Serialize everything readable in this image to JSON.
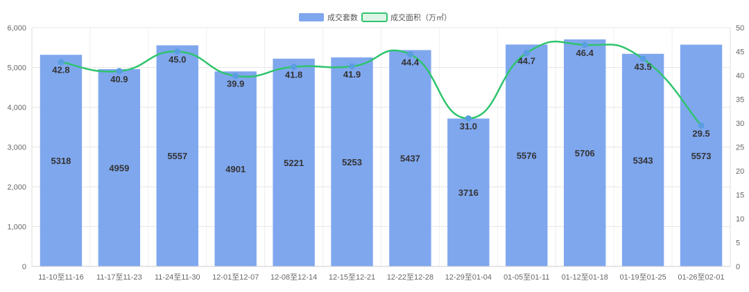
{
  "chart_data": {
    "type": "bar",
    "categories": [
      "11-10至11-16",
      "11-17至11-23",
      "11-24至11-30",
      "12-01至12-07",
      "12-08至12-14",
      "12-15至12-21",
      "12-22至12-28",
      "12-29至01-04",
      "01-05至01-11",
      "01-12至01-18",
      "01-19至01-25",
      "01-26至02-01"
    ],
    "series": [
      {
        "name": "成交套数",
        "type": "bar",
        "axis": "left",
        "color": "#7fa7ee",
        "values": [
          5318,
          4959,
          5557,
          4901,
          5221,
          5253,
          5437,
          3716,
          5576,
          5706,
          5343,
          5573
        ],
        "labels": [
          "5318",
          "4959",
          "5557",
          "4901",
          "5221",
          "5253",
          "5437",
          "3716",
          "5576",
          "5706",
          "5343",
          "5573"
        ]
      },
      {
        "name": "成交面积（万㎡）",
        "type": "line",
        "axis": "right",
        "color": "#2ec46d",
        "marker_color": "#5a9ee0",
        "values": [
          42.8,
          40.9,
          45.0,
          39.9,
          41.8,
          41.9,
          44.4,
          31.0,
          44.7,
          46.4,
          43.5,
          29.5
        ],
        "labels": [
          "42.8",
          "40.9",
          "45.0",
          "39.9",
          "41.8",
          "41.9",
          "44.4",
          "31.0",
          "44.7",
          "46.4",
          "43.5",
          "29.5"
        ]
      }
    ],
    "left_axis": {
      "ylim": [
        0,
        6000
      ],
      "ticks": [
        0,
        1000,
        2000,
        3000,
        4000,
        5000,
        6000
      ],
      "tick_labels": [
        "0",
        "1,000",
        "2,000",
        "3,000",
        "4,000",
        "5,000",
        "6,000"
      ]
    },
    "right_axis": {
      "ylim": [
        0,
        50
      ],
      "ticks": [
        0,
        5,
        10,
        15,
        20,
        25,
        30,
        35,
        40,
        45,
        50
      ],
      "tick_labels": [
        "0",
        "5",
        "10",
        "15",
        "20",
        "25",
        "30",
        "35",
        "40",
        "45",
        "50"
      ]
    },
    "grid": true,
    "legend_position": "top-center"
  }
}
